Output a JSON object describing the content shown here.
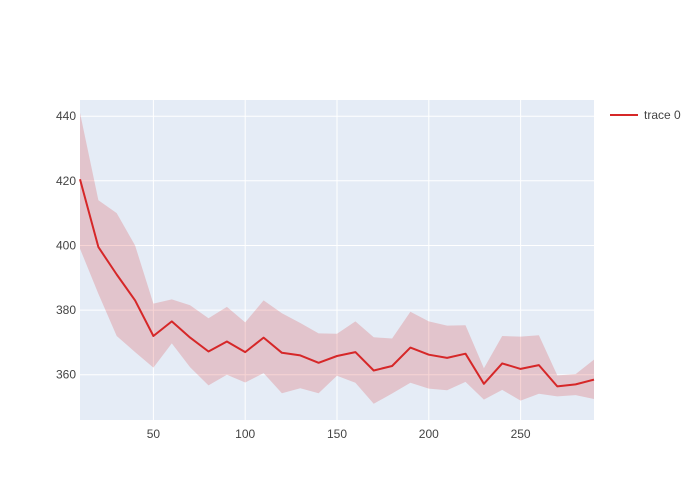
{
  "chart_data": {
    "type": "line",
    "x": [
      10,
      20,
      30,
      40,
      50,
      60,
      70,
      80,
      90,
      100,
      110,
      120,
      130,
      140,
      150,
      160,
      170,
      180,
      190,
      200,
      210,
      220,
      230,
      240,
      250,
      260,
      270,
      280,
      290
    ],
    "series": [
      {
        "name": "trace 0",
        "color": "#d62728",
        "values": [
          420.5,
          399.5,
          391,
          383,
          372,
          376.5,
          371.5,
          367.2,
          370.3,
          367,
          371.5,
          366.8,
          366,
          363.7,
          365.8,
          367,
          361.3,
          362.7,
          368.4,
          366.2,
          365.2,
          366.5,
          357.2,
          363.5,
          361.8,
          363,
          356.4,
          357,
          358.5
        ],
        "upper": [
          441,
          414,
          410,
          400,
          382,
          383.3,
          381.5,
          377.5,
          381,
          376.2,
          383,
          379,
          376,
          372.8,
          372.7,
          376.5,
          371.6,
          371.2,
          379.5,
          376.5,
          375.2,
          375.3,
          362,
          372,
          371.8,
          372.2,
          359.8,
          360.2,
          364.7
        ],
        "lower": [
          399,
          385,
          372,
          367,
          362.2,
          369.7,
          362.3,
          356.7,
          360,
          357.6,
          360.5,
          354.3,
          355.8,
          354.3,
          359.7,
          357.5,
          351,
          354.2,
          357.5,
          355.7,
          355.2,
          357.8,
          352.3,
          355.3,
          352,
          354.1,
          353.3,
          353.7,
          352.5
        ],
        "band_color": "rgba(214,39,40,0.2)"
      }
    ],
    "xlim": [
      10,
      290
    ],
    "ylim": [
      346,
      445
    ],
    "x_ticks": [
      50,
      100,
      150,
      200,
      250
    ],
    "y_ticks": [
      360,
      380,
      400,
      420,
      440
    ],
    "grid": true,
    "legend_position": "top-right"
  }
}
